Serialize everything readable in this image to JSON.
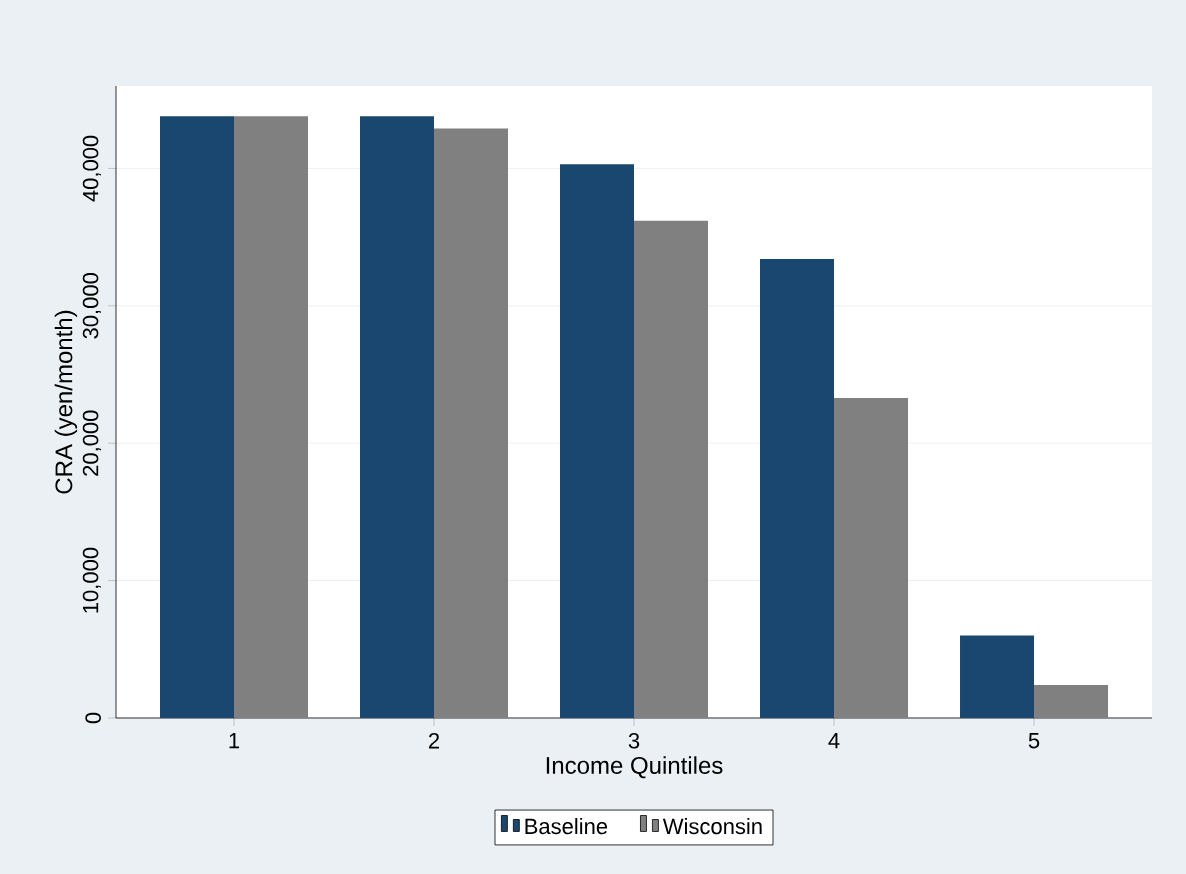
{
  "chart_data": {
    "type": "bar",
    "xlabel": "Income Quintiles",
    "ylabel": "CRA (yen/month)",
    "categories": [
      "1",
      "2",
      "3",
      "4",
      "5"
    ],
    "series": [
      {
        "name": "Baseline",
        "color": "#1a476f",
        "values": [
          43800,
          43800,
          40300,
          33400,
          6000
        ]
      },
      {
        "name": "Wisconsin",
        "color": "#808080",
        "values": [
          43800,
          42900,
          36200,
          23300,
          2400
        ]
      }
    ],
    "ylim": [
      0,
      46000
    ],
    "yticks": [
      0,
      {
        "value": 10000,
        "label": "10,000"
      },
      {
        "value": 20000,
        "label": "20,000"
      },
      {
        "value": 30000,
        "label": "30,000"
      },
      {
        "value": 40000,
        "label": "40,000"
      }
    ],
    "grid": "y",
    "legend": "bottom"
  }
}
